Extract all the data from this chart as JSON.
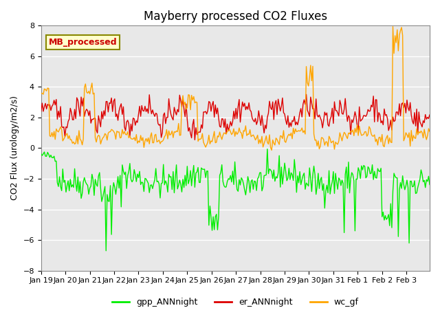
{
  "title": "Mayberry processed CO2 Fluxes",
  "ylabel": "CO2 Flux (urology/m2/s)",
  "ylim": [
    -8,
    8
  ],
  "yticks": [
    -8,
    -6,
    -4,
    -2,
    0,
    2,
    4,
    6,
    8
  ],
  "bg_color": "#e8e8e8",
  "grid_color": "#ffffff",
  "legend_label": "MB_processed",
  "gpp_color": "#00ee00",
  "er_color": "#dd0000",
  "wc_color": "#ffa500",
  "n_points": 360,
  "xtick_labels": [
    "Jan 19",
    "Jan 20",
    "Jan 21",
    "Jan 22",
    "Jan 23",
    "Jan 24",
    "Jan 25",
    "Jan 26",
    "Jan 27",
    "Jan 28",
    "Jan 29",
    "Jan 30",
    "Jan 31",
    "Feb 1",
    "Feb 2",
    "Feb 3"
  ],
  "legend_entries": [
    "gpp_ANNnight",
    "er_ANNnight",
    "wc_gf"
  ],
  "legend_colors": [
    "#00ee00",
    "#dd0000",
    "#ffa500"
  ],
  "line_lw": 1.0
}
